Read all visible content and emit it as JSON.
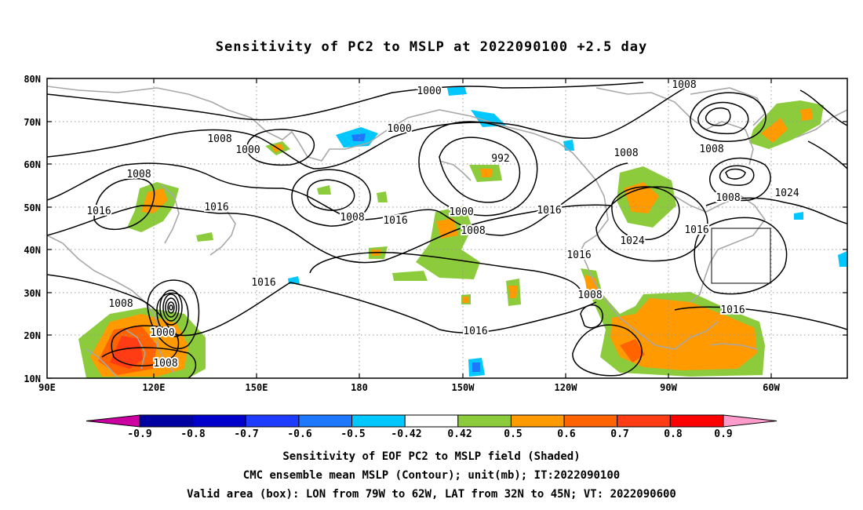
{
  "title": "Sensitivity of PC2 to MSLP at 2022090100 +2.5 day",
  "lat_labels": [
    "80N",
    "70N",
    "60N",
    "50N",
    "40N",
    "30N",
    "20N",
    "10N"
  ],
  "lon_labels": [
    "90E",
    "120E",
    "150E",
    "180",
    "150W",
    "120W",
    "90W",
    "60W"
  ],
  "contour_labels": [
    "1000",
    "1008",
    "1000",
    "1000",
    "1008",
    "1008",
    "1016",
    "1016",
    "1008",
    "992",
    "1000",
    "1016",
    "1008",
    "1016",
    "1008",
    "1008",
    "1008",
    "1024",
    "1016",
    "1024",
    "1016",
    "1016",
    "1008",
    "1016",
    "1016",
    "1008",
    "1000",
    "1008",
    "1016"
  ],
  "colorbar": {
    "labels": [
      "-0.9",
      "-0.8",
      "-0.7",
      "-0.6",
      "-0.5",
      "-0.42",
      "0.42",
      "0.5",
      "0.6",
      "0.7",
      "0.8",
      "0.9"
    ],
    "colors": [
      "#cc00a0",
      "#0000a0",
      "#0000cd",
      "#1e3cff",
      "#1e78ff",
      "#00c8ff",
      "#ffffff",
      "#8ccc3c",
      "#ff9a00",
      "#ff6400",
      "#ff3c14",
      "#ff0000",
      "#ff9ccc"
    ]
  },
  "captions": [
    "Sensitivity of EOF PC2 to MSLP field (Shaded)",
    "CMC ensemble mean MSLP (Contour); unit(mb); IT:2022090100",
    "Valid area (box): LON from 79W to 62W, LAT from 32N to 45N; VT: 2022090600"
  ]
}
